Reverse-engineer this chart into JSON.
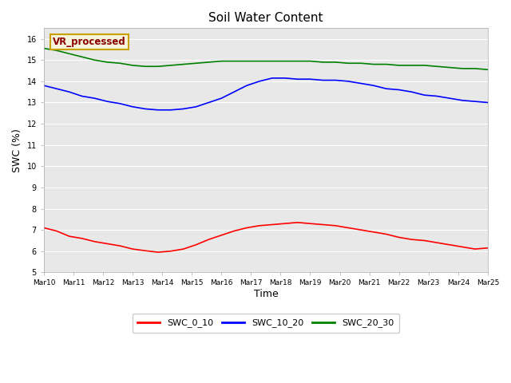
{
  "title": "Soil Water Content",
  "xlabel": "Time",
  "ylabel": "SWC (%)",
  "ylim": [
    5.0,
    16.5
  ],
  "yticks": [
    5.0,
    6.0,
    7.0,
    8.0,
    9.0,
    10.0,
    11.0,
    12.0,
    13.0,
    14.0,
    15.0,
    16.0
  ],
  "plot_bg_color": "#e8e8e8",
  "annotation_text": "VR_processed",
  "annotation_color": "#8b0000",
  "annotation_bg": "#f5f5dc",
  "annotation_edge": "#c8a000",
  "legend_entries": [
    "SWC_0_10",
    "SWC_10_20",
    "SWC_20_30"
  ],
  "line_colors": [
    "red",
    "blue",
    "green"
  ],
  "xtick_labels": [
    "Mar 10",
    "Mar 11",
    "Mar 12",
    "Mar 13",
    "Mar 14",
    "Mar 15",
    "Mar 16",
    "Mar 17",
    "Mar 18",
    "Mar 19",
    "Mar 20",
    "Mar 21",
    "Mar 22",
    "Mar 23",
    "Mar 24",
    "Mar 25"
  ],
  "swc_0_10": [
    7.1,
    6.95,
    6.7,
    6.6,
    6.45,
    6.35,
    6.25,
    6.1,
    6.02,
    5.95,
    6.0,
    6.1,
    6.3,
    6.55,
    6.75,
    6.95,
    7.1,
    7.2,
    7.25,
    7.3,
    7.35,
    7.3,
    7.25,
    7.2,
    7.1,
    7.0,
    6.9,
    6.8,
    6.65,
    6.55,
    6.5,
    6.4,
    6.3,
    6.2,
    6.1,
    6.15
  ],
  "swc_10_20": [
    13.8,
    13.65,
    13.5,
    13.3,
    13.2,
    13.05,
    12.95,
    12.8,
    12.7,
    12.65,
    12.65,
    12.7,
    12.8,
    13.0,
    13.2,
    13.5,
    13.8,
    14.0,
    14.15,
    14.15,
    14.1,
    14.1,
    14.05,
    14.05,
    14.0,
    13.9,
    13.8,
    13.65,
    13.6,
    13.5,
    13.35,
    13.3,
    13.2,
    13.1,
    13.05,
    13.0
  ],
  "swc_20_30": [
    15.55,
    15.45,
    15.3,
    15.15,
    15.0,
    14.9,
    14.85,
    14.75,
    14.7,
    14.7,
    14.75,
    14.8,
    14.85,
    14.9,
    14.95,
    14.95,
    14.95,
    14.95,
    14.95,
    14.95,
    14.95,
    14.95,
    14.9,
    14.9,
    14.85,
    14.85,
    14.8,
    14.8,
    14.75,
    14.75,
    14.75,
    14.7,
    14.65,
    14.6,
    14.6,
    14.55
  ]
}
